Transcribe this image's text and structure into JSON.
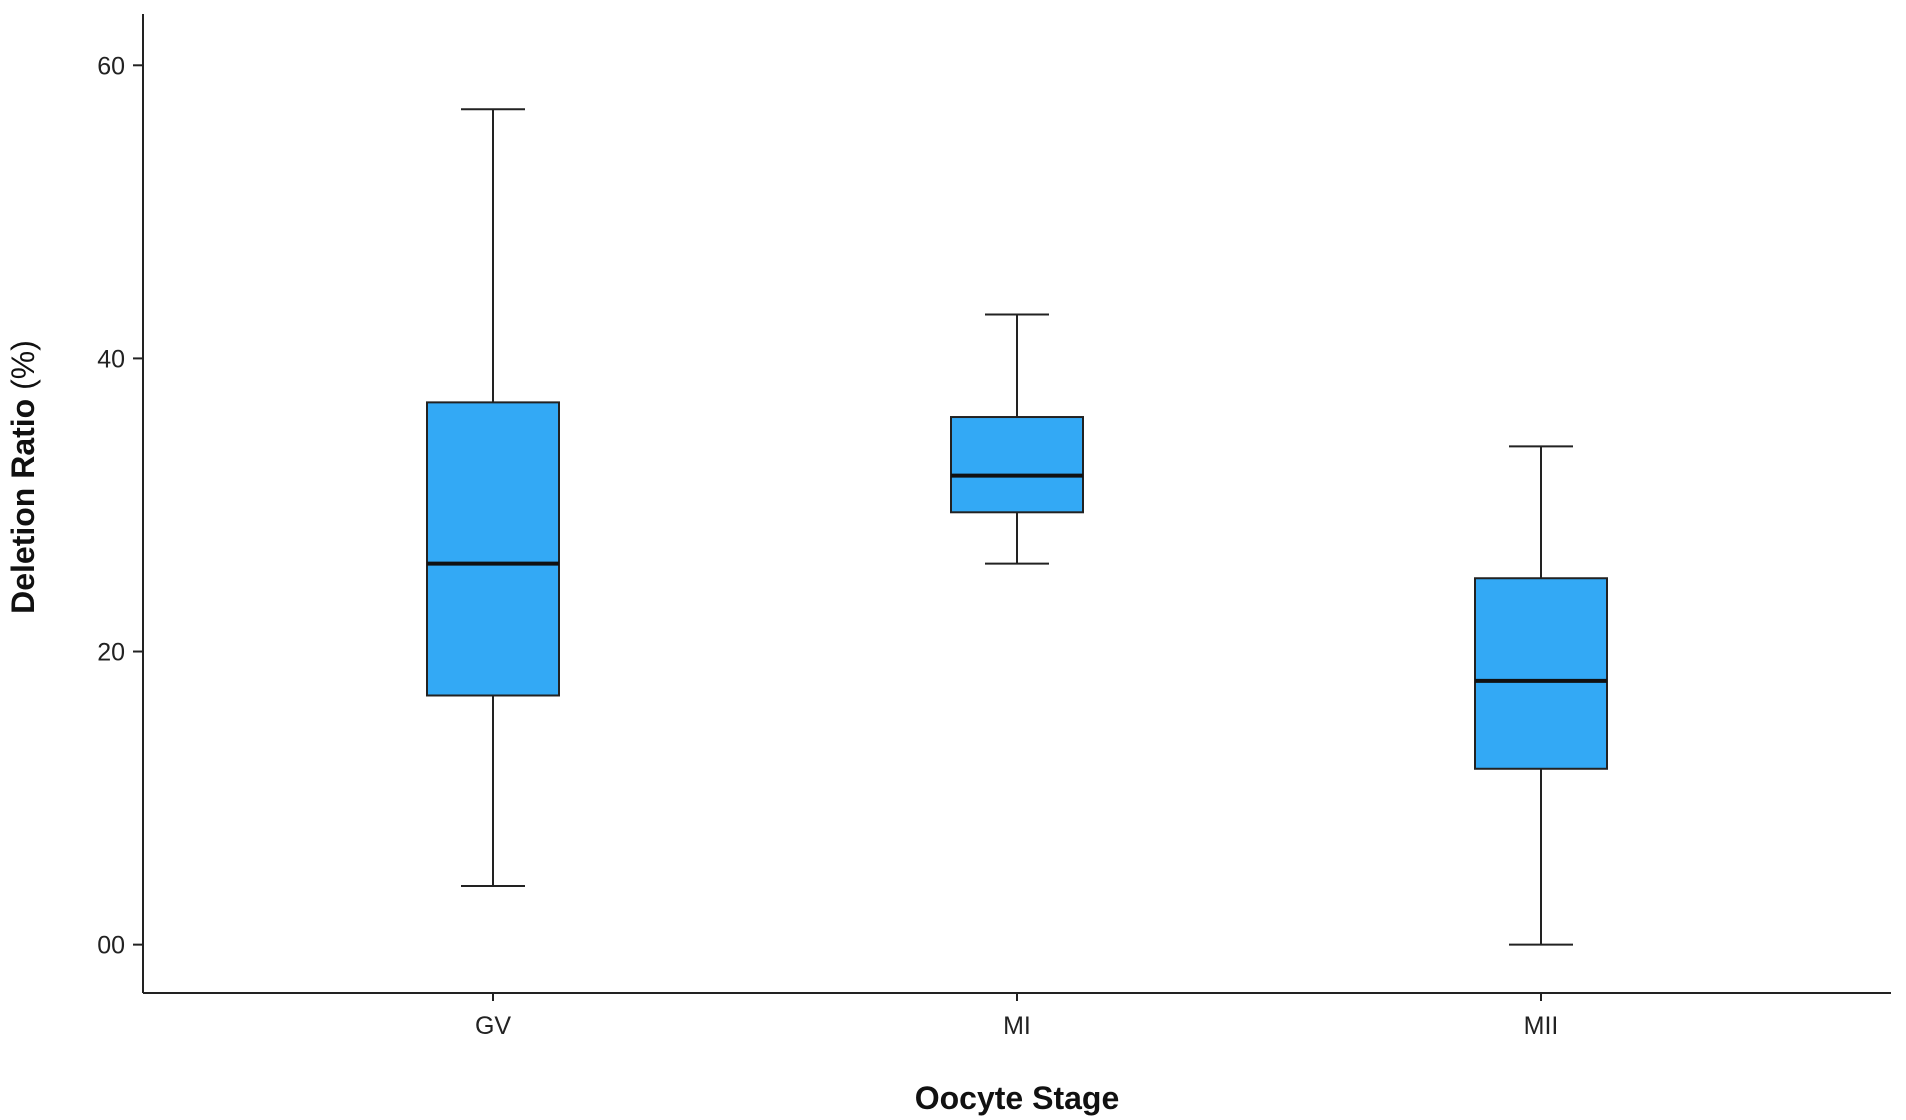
{
  "chart_data": {
    "type": "box",
    "xlabel": "Oocyte Stage",
    "ylabel": "Deletion Ratio",
    "ylabel_unit": "(%)",
    "y_ticks": [
      {
        "value": 0,
        "label": "00"
      },
      {
        "value": 20,
        "label": "20"
      },
      {
        "value": 40,
        "label": "40"
      },
      {
        "value": 60,
        "label": "60"
      }
    ],
    "ylim": [
      -3.3,
      63.5
    ],
    "grid": false,
    "categories": [
      "GV",
      "MI",
      "MII"
    ],
    "boxes": [
      {
        "category": "GV",
        "min": 4,
        "q1": 17,
        "median": 26,
        "q3": 37,
        "max": 57
      },
      {
        "category": "MI",
        "min": 26,
        "q1": 29.5,
        "median": 32,
        "q3": 36,
        "max": 43
      },
      {
        "category": "MII",
        "min": 0,
        "q1": 12,
        "median": 18,
        "q3": 25,
        "max": 34
      }
    ],
    "box_color": "#33a9f5"
  }
}
